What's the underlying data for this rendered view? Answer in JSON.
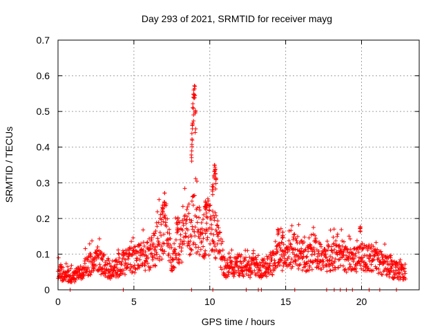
{
  "chart_data": {
    "type": "scatter",
    "title": "Day 293 of 2021, SRMTID for receiver mayg",
    "xlabel": "GPS time / hours",
    "ylabel": "SRMTID / TECUs",
    "xlim": [
      0,
      23.8
    ],
    "ylim": [
      0,
      0.7
    ],
    "x_ticks": [
      0,
      5,
      10,
      15,
      20
    ],
    "x_tick_labels": [
      "0",
      "5",
      "10",
      "15",
      "20"
    ],
    "y_ticks": [
      0,
      0.1,
      0.2,
      0.3,
      0.4,
      0.5,
      0.6,
      0.7
    ],
    "y_tick_labels": [
      "0",
      "0.1",
      "0.2",
      "0.3",
      "0.4",
      "0.5",
      "0.6",
      "0.7"
    ],
    "grid": true,
    "marker": "plus",
    "color": "#ff0000",
    "series": [
      {
        "name": "SRMTID",
        "trend": [
          [
            0.0,
            0.05
          ],
          [
            0.5,
            0.04
          ],
          [
            1.0,
            0.035
          ],
          [
            1.5,
            0.05
          ],
          [
            2.0,
            0.07
          ],
          [
            2.5,
            0.08
          ],
          [
            3.0,
            0.07
          ],
          [
            3.5,
            0.055
          ],
          [
            4.0,
            0.065
          ],
          [
            4.5,
            0.08
          ],
          [
            5.0,
            0.085
          ],
          [
            5.5,
            0.09
          ],
          [
            6.0,
            0.1
          ],
          [
            6.5,
            0.12
          ],
          [
            7.0,
            0.17
          ],
          [
            7.5,
            0.09
          ],
          [
            8.0,
            0.13
          ],
          [
            8.5,
            0.16
          ],
          [
            9.0,
            0.19
          ],
          [
            9.5,
            0.14
          ],
          [
            10.0,
            0.18
          ],
          [
            10.5,
            0.14
          ],
          [
            11.0,
            0.06
          ],
          [
            11.5,
            0.065
          ],
          [
            12.0,
            0.07
          ],
          [
            12.5,
            0.06
          ],
          [
            13.0,
            0.065
          ],
          [
            13.5,
            0.06
          ],
          [
            14.0,
            0.07
          ],
          [
            14.5,
            0.09
          ],
          [
            15.0,
            0.1
          ],
          [
            15.5,
            0.11
          ],
          [
            16.0,
            0.1
          ],
          [
            16.5,
            0.09
          ],
          [
            17.0,
            0.1
          ],
          [
            17.5,
            0.085
          ],
          [
            18.0,
            0.09
          ],
          [
            18.5,
            0.1
          ],
          [
            19.0,
            0.09
          ],
          [
            19.5,
            0.08
          ],
          [
            20.0,
            0.09
          ],
          [
            20.5,
            0.09
          ],
          [
            21.0,
            0.08
          ],
          [
            21.5,
            0.07
          ],
          [
            22.0,
            0.06
          ],
          [
            22.5,
            0.05
          ],
          [
            22.9,
            0.05
          ]
        ],
        "peaks": [
          [
            6.9,
            0.24
          ],
          [
            7.0,
            0.27
          ],
          [
            8.8,
            0.4
          ],
          [
            8.85,
            0.46
          ],
          [
            8.9,
            0.52
          ],
          [
            8.95,
            0.57
          ],
          [
            9.0,
            0.6
          ],
          [
            9.05,
            0.5
          ],
          [
            10.2,
            0.3
          ],
          [
            10.3,
            0.35
          ],
          [
            10.35,
            0.34
          ],
          [
            10.4,
            0.31
          ],
          [
            9.7,
            0.25
          ],
          [
            9.8,
            0.24
          ],
          [
            14.5,
            0.17
          ],
          [
            19.9,
            0.18
          ],
          [
            14.8,
            0.16
          ],
          [
            7.9,
            0.2
          ]
        ],
        "gaps": [
          0.8,
          4.3,
          8.8,
          10.2,
          12.4,
          13.2,
          13.4,
          15.6,
          17.7,
          18.2,
          18.6,
          19.0,
          19.4,
          20.5,
          21.2,
          22.3
        ]
      }
    ]
  }
}
